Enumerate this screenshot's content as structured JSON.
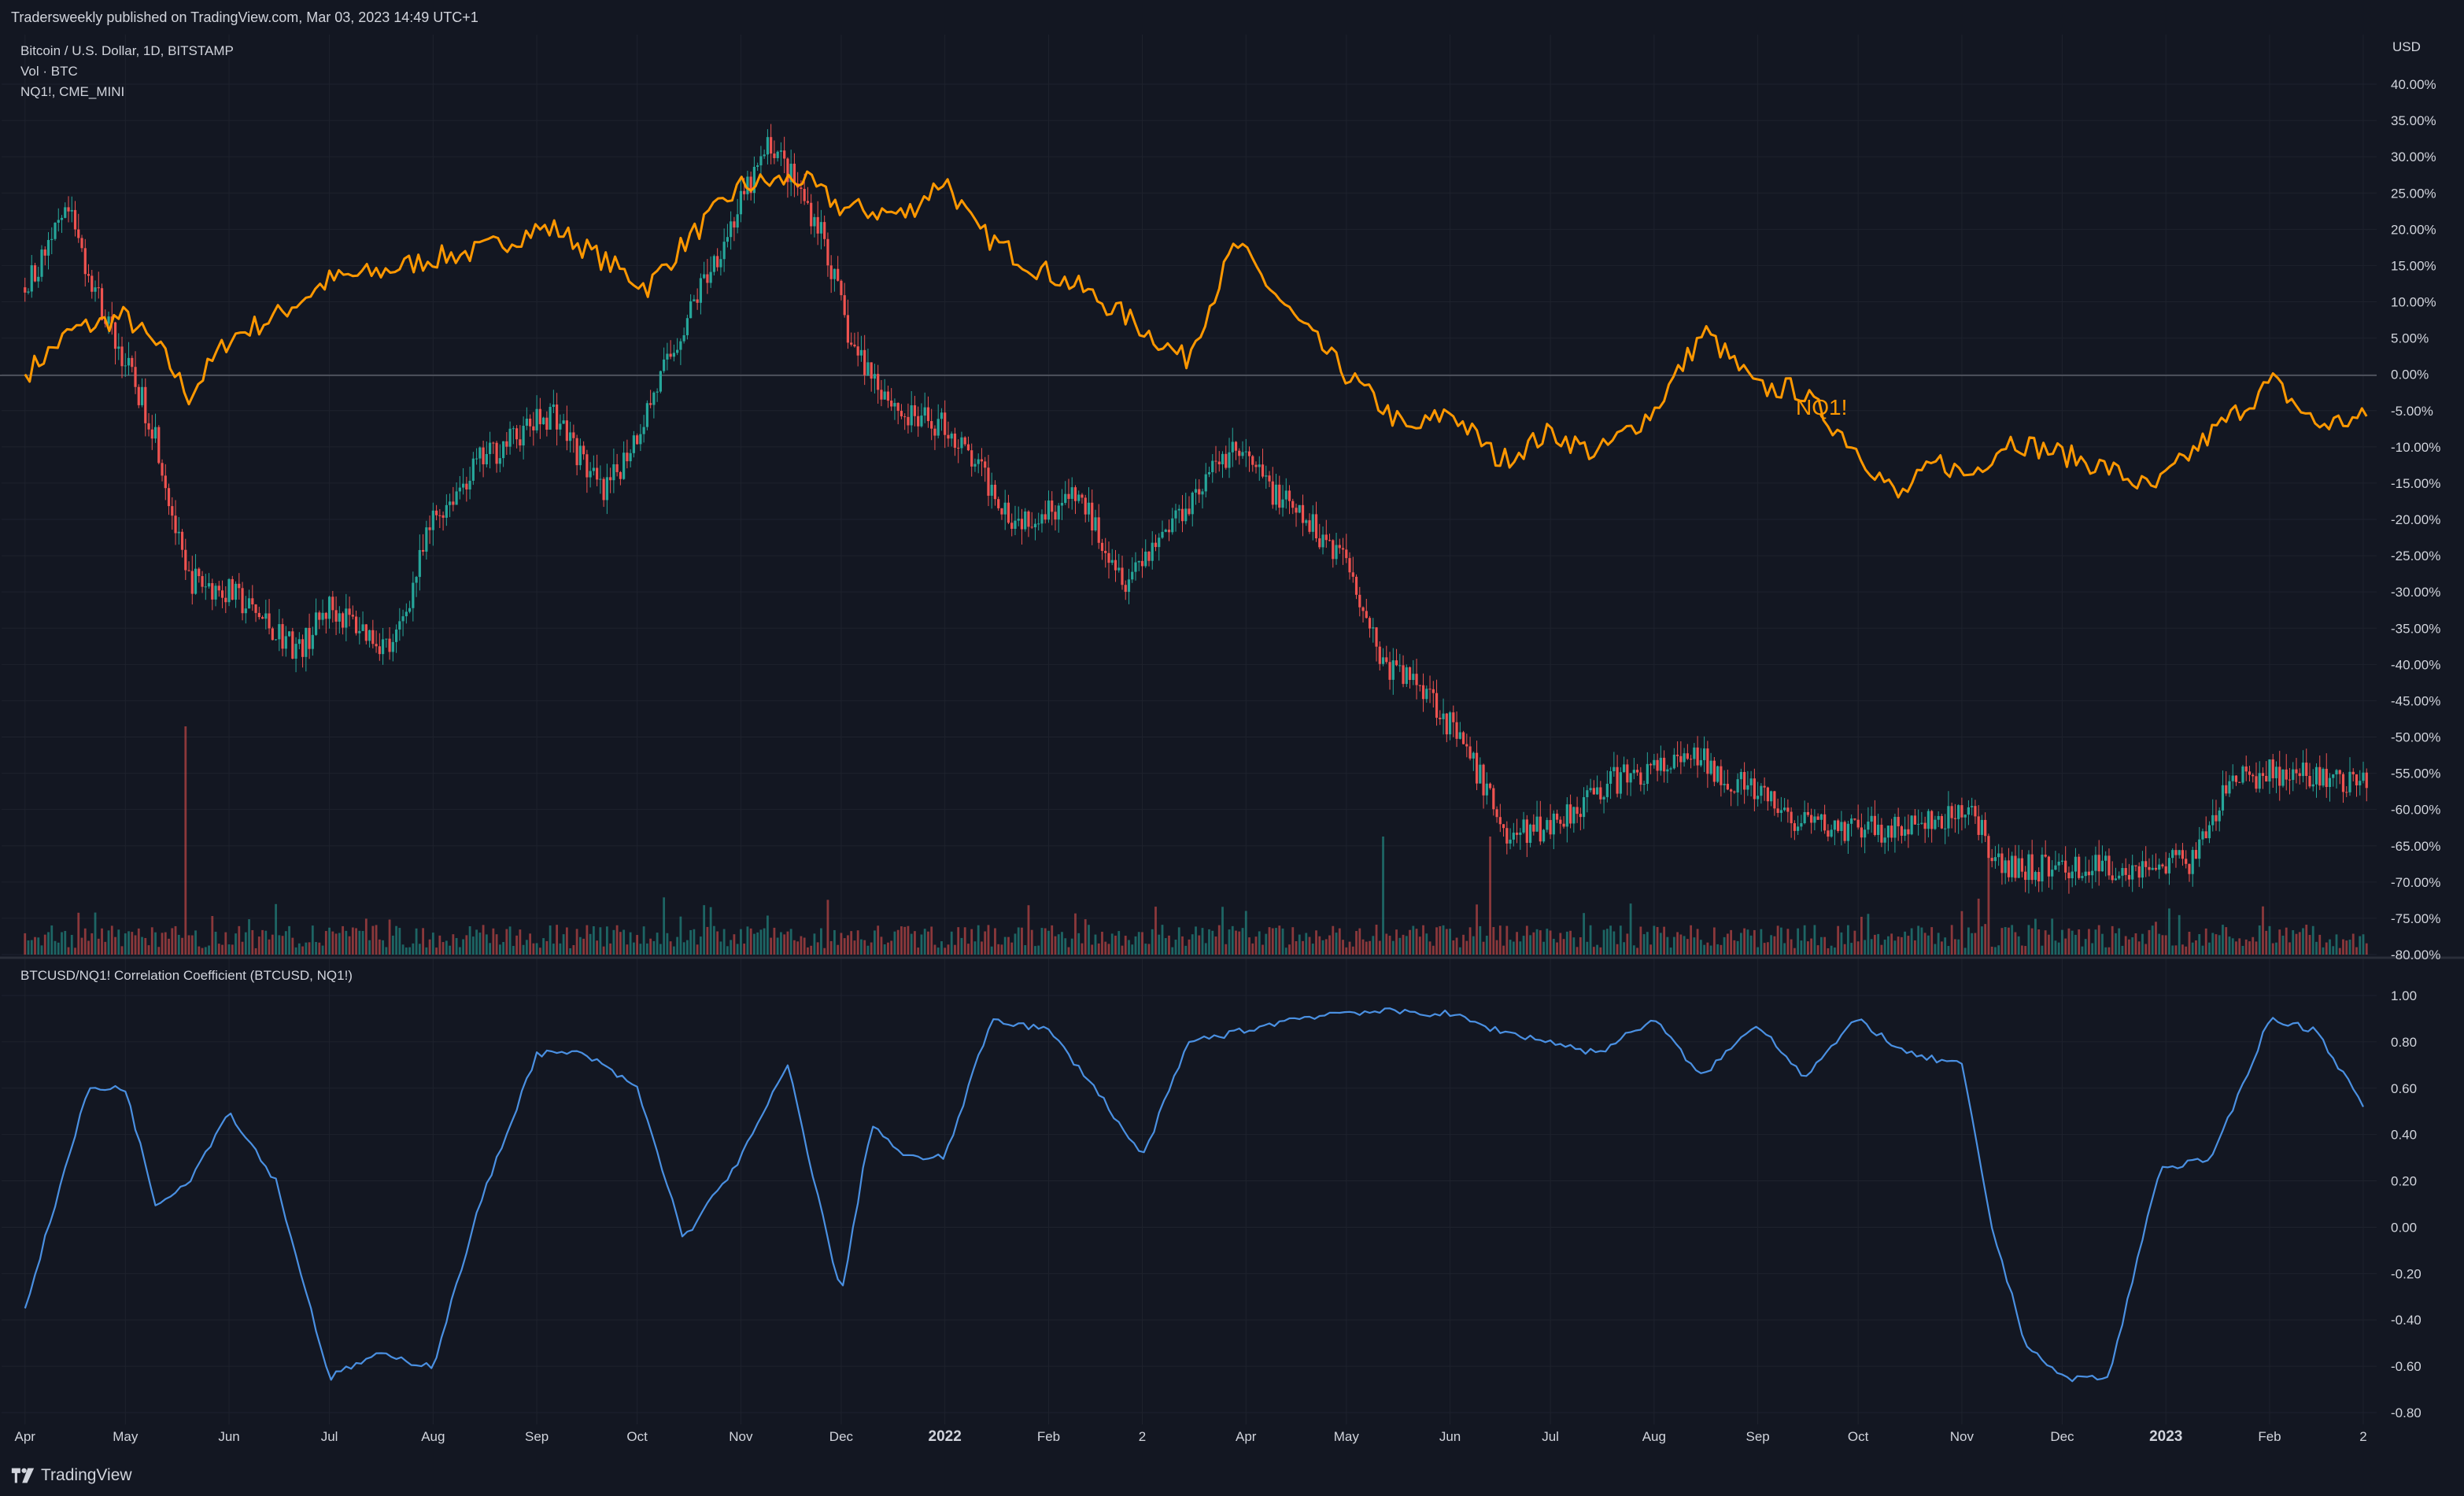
{
  "header": {
    "published": "Tradersweekly published on TradingView.com, Mar 03, 2023 14:49 UTC+1"
  },
  "legend": {
    "symbol": "Bitcoin / U.S. Dollar, 1D, BITSTAMP",
    "volume": "Vol · BTC",
    "compare": "NQ1!, CME_MINI"
  },
  "axis": {
    "currency": "USD"
  },
  "indicator": {
    "title": "BTCUSD/NQ1! Correlation Coefficient (BTCUSD, NQ1!)"
  },
  "footer": {
    "brand": "TradingView"
  },
  "colors": {
    "background": "#131722",
    "grid": "#1e222d",
    "up": "#26a69a",
    "down": "#ef5350",
    "compare": "#ff9800",
    "corr": "#4a90e2",
    "text": "#d1d4dc"
  },
  "chart_data": [
    {
      "type": "line",
      "title": "Bitcoin / U.S. Dollar, 1D, BITSTAMP",
      "ylabel": "USD",
      "y_unit": "% change",
      "ylim": [
        -80,
        40
      ],
      "y_ticks": [
        "40.00%",
        "35.00%",
        "30.00%",
        "25.00%",
        "20.00%",
        "15.00%",
        "10.00%",
        "5.00%",
        "0.00%",
        "-5.00%",
        "-10.00%",
        "-15.00%",
        "-20.00%",
        "-25.00%",
        "-30.00%",
        "-35.00%",
        "-40.00%",
        "-45.00%",
        "-50.00%",
        "-55.00%",
        "-60.00%",
        "-65.00%",
        "-70.00%",
        "-75.00%",
        "-80.00%"
      ],
      "x_ticks": [
        "Apr",
        "May",
        "Jun",
        "Jul",
        "Aug",
        "Sep",
        "Oct",
        "Nov",
        "Dec",
        "2022",
        "Feb",
        "2",
        "Apr",
        "May",
        "Jun",
        "Jul",
        "Aug",
        "Sep",
        "Oct",
        "Nov",
        "Dec",
        "2023",
        "Feb",
        "2"
      ],
      "series": [
        {
          "name": "NQ1!",
          "style": "line",
          "x": [
            "2021-04-01",
            "2021-04-15",
            "2021-05-01",
            "2021-05-12",
            "2021-05-20",
            "2021-06-01",
            "2021-06-15",
            "2021-07-01",
            "2021-07-15",
            "2021-08-01",
            "2021-08-15",
            "2021-09-01",
            "2021-09-07",
            "2021-09-20",
            "2021-10-04",
            "2021-10-15",
            "2021-11-01",
            "2021-11-19",
            "2021-12-01",
            "2021-12-20",
            "2022-01-01",
            "2022-01-10",
            "2022-01-27",
            "2022-02-10",
            "2022-02-24",
            "2022-03-14",
            "2022-03-29",
            "2022-04-15",
            "2022-05-01",
            "2022-05-20",
            "2022-06-01",
            "2022-06-16",
            "2022-07-01",
            "2022-07-15",
            "2022-08-01",
            "2022-08-16",
            "2022-09-01",
            "2022-09-13",
            "2022-09-30",
            "2022-10-13",
            "2022-10-25",
            "2022-11-03",
            "2022-11-15",
            "2022-12-01",
            "2022-12-15",
            "2022-12-28",
            "2023-01-15",
            "2023-02-02",
            "2023-02-15",
            "2023-03-02"
          ],
          "y": [
            0,
            6,
            8,
            3,
            -3,
            5,
            8,
            13,
            14,
            16,
            17,
            20,
            20,
            16,
            12,
            18,
            26,
            27,
            23,
            22,
            27,
            20,
            15,
            12,
            8,
            2,
            18,
            8,
            0,
            -8,
            -5,
            -12,
            -8,
            -11,
            -5,
            6,
            -2,
            -2,
            -10,
            -17,
            -12,
            -14,
            -9,
            -11,
            -13,
            -16,
            -8,
            -1,
            -7,
            -6
          ]
        },
        {
          "name": "BTCUSD",
          "style": "candles",
          "x": [
            "2021-04-01",
            "2021-04-14",
            "2021-04-25",
            "2021-05-10",
            "2021-05-19",
            "2021-06-01",
            "2021-06-22",
            "2021-07-01",
            "2021-07-20",
            "2021-08-01",
            "2021-08-15",
            "2021-09-06",
            "2021-09-21",
            "2021-10-01",
            "2021-10-20",
            "2021-11-10",
            "2021-11-25",
            "2021-12-04",
            "2021-12-20",
            "2022-01-01",
            "2022-01-22",
            "2022-02-10",
            "2022-02-24",
            "2022-03-28",
            "2022-04-15",
            "2022-05-01",
            "2022-05-12",
            "2022-05-25",
            "2022-06-13",
            "2022-06-18",
            "2022-07-01",
            "2022-07-20",
            "2022-08-14",
            "2022-09-01",
            "2022-09-13",
            "2022-10-01",
            "2022-10-25",
            "2022-11-05",
            "2022-11-10",
            "2022-12-01",
            "2022-12-20",
            "2023-01-10",
            "2023-01-20",
            "2023-02-01",
            "2023-02-20",
            "2023-03-02"
          ],
          "y": [
            12,
            22,
            8,
            -8,
            -28,
            -30,
            -38,
            -32,
            -38,
            -20,
            -12,
            -5,
            -17,
            -8,
            12,
            32,
            20,
            4,
            -6,
            -7,
            -20,
            -17,
            -28,
            -10,
            -19,
            -25,
            -40,
            -43,
            -58,
            -64,
            -62,
            -56,
            -53,
            -58,
            -62,
            -63,
            -62,
            -60,
            -68,
            -68,
            -68,
            -67,
            -56,
            -55,
            -56,
            -57
          ]
        }
      ],
      "annotations": [
        "NQ1!"
      ]
    },
    {
      "type": "line",
      "title": "BTCUSD/NQ1! Correlation Coefficient (BTCUSD, NQ1!)",
      "ylim": [
        -0.8,
        1.0
      ],
      "y_ticks": [
        "1.00",
        "0.80",
        "0.60",
        "0.40",
        "0.20",
        "0.00",
        "-0.20",
        "-0.40",
        "-0.60",
        "-0.80"
      ],
      "series": [
        {
          "name": "Correlation",
          "x": [
            "2021-04-01",
            "2021-04-10",
            "2021-04-20",
            "2021-05-01",
            "2021-05-10",
            "2021-05-20",
            "2021-06-01",
            "2021-06-15",
            "2021-07-01",
            "2021-07-15",
            "2021-08-01",
            "2021-08-15",
            "2021-09-01",
            "2021-09-15",
            "2021-10-01",
            "2021-10-15",
            "2021-11-01",
            "2021-11-15",
            "2021-12-01",
            "2021-12-10",
            "2021-12-20",
            "2022-01-01",
            "2022-01-15",
            "2022-02-01",
            "2022-02-15",
            "2022-03-01",
            "2022-03-15",
            "2022-04-01",
            "2022-04-15",
            "2022-05-01",
            "2022-05-15",
            "2022-06-01",
            "2022-06-15",
            "2022-07-01",
            "2022-07-15",
            "2022-08-01",
            "2022-08-15",
            "2022-09-01",
            "2022-09-15",
            "2022-10-01",
            "2022-10-15",
            "2022-11-01",
            "2022-11-10",
            "2022-11-20",
            "2022-12-01",
            "2022-12-15",
            "2022-12-30",
            "2023-01-15",
            "2023-02-01",
            "2023-02-15",
            "2023-03-02"
          ],
          "y": [
            -0.35,
            0.1,
            0.6,
            0.6,
            0.1,
            0.2,
            0.5,
            0.2,
            -0.65,
            -0.55,
            -0.6,
            0.1,
            0.75,
            0.75,
            0.6,
            -0.05,
            0.3,
            0.7,
            -0.3,
            0.45,
            0.3,
            0.3,
            0.9,
            0.85,
            0.6,
            0.3,
            0.8,
            0.85,
            0.9,
            0.93,
            0.93,
            0.92,
            0.85,
            0.8,
            0.75,
            0.9,
            0.65,
            0.88,
            0.65,
            0.9,
            0.75,
            0.7,
            0.0,
            -0.5,
            -0.65,
            -0.65,
            0.25,
            0.3,
            0.9,
            0.85,
            0.5
          ]
        }
      ]
    }
  ]
}
